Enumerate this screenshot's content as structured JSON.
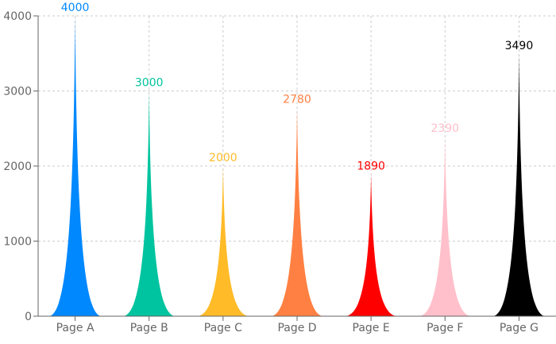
{
  "chart_data": {
    "type": "bar",
    "title": "",
    "xlabel": "",
    "ylabel": "",
    "categories": [
      "Page A",
      "Page B",
      "Page C",
      "Page D",
      "Page E",
      "Page F",
      "Page G"
    ],
    "values": [
      4000,
      3000,
      2000,
      2780,
      1890,
      2390,
      3490
    ],
    "value_labels": [
      "4000",
      "3000",
      "2000",
      "2780",
      "1890",
      "2390",
      "3490"
    ],
    "colors": [
      "#0088FE",
      "#00C49F",
      "#FFBB28",
      "#FF8042",
      "#FF0000",
      "#FFC0CB",
      "#000000"
    ],
    "ylim": [
      0,
      4000
    ],
    "yticks": [
      0,
      1000,
      2000,
      3000,
      4000
    ],
    "ytick_labels": [
      "0",
      "1000",
      "2000",
      "3000",
      "4000"
    ],
    "grid": true,
    "bar_shape": "concave triangle"
  }
}
